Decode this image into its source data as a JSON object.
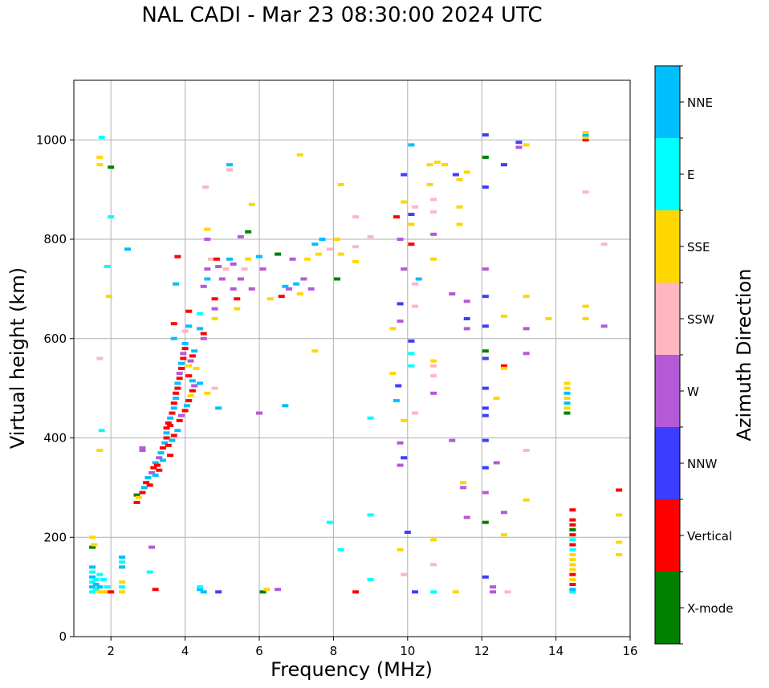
{
  "chart_data": {
    "type": "scatter",
    "title": "NAL CADI - Mar 23 08:30:00 2024 UTC",
    "xlabel": "Frequency (MHz)",
    "ylabel": "Virtual height (km)",
    "xlim": [
      1,
      16
    ],
    "ylim": [
      0,
      1120
    ],
    "xticks": [
      2,
      4,
      6,
      8,
      10,
      12,
      14,
      16
    ],
    "yticks": [
      0,
      200,
      400,
      600,
      800,
      1000
    ],
    "grid": true,
    "colorbar": {
      "label": "Azimuth Direction",
      "categories": [
        {
          "name": "X-mode",
          "color": "#008000"
        },
        {
          "name": "Vertical",
          "color": "#ff0000"
        },
        {
          "name": "NNW",
          "color": "#3d3dff"
        },
        {
          "name": "W",
          "color": "#b45ad6"
        },
        {
          "name": "SSW",
          "color": "#ffb6c1"
        },
        {
          "name": "SSE",
          "color": "#ffd700"
        },
        {
          "name": "E",
          "color": "#00ffff"
        },
        {
          "name": "NNE",
          "color": "#00bfff"
        }
      ]
    },
    "points": [
      [
        1.5,
        90,
        "E"
      ],
      [
        1.5,
        100,
        "NNE"
      ],
      [
        1.5,
        110,
        "E"
      ],
      [
        1.5,
        120,
        "NNE"
      ],
      [
        1.5,
        130,
        "E"
      ],
      [
        1.5,
        140,
        "NNE"
      ],
      [
        1.5,
        180,
        "X-mode"
      ],
      [
        1.55,
        185,
        "SSE"
      ],
      [
        1.6,
        95,
        "E"
      ],
      [
        1.6,
        105,
        "NNE"
      ],
      [
        1.6,
        115,
        "E"
      ],
      [
        1.7,
        90,
        "SSE"
      ],
      [
        1.7,
        100,
        "NNE"
      ],
      [
        1.7,
        125,
        "E"
      ],
      [
        1.8,
        90,
        "SSE"
      ],
      [
        1.8,
        115,
        "E"
      ],
      [
        1.9,
        90,
        "SSE"
      ],
      [
        1.9,
        100,
        "E"
      ],
      [
        2.0,
        90,
        "Vertical"
      ],
      [
        2.3,
        90,
        "SSE"
      ],
      [
        2.3,
        100,
        "E"
      ],
      [
        2.3,
        110,
        "SSE"
      ],
      [
        2.3,
        140,
        "NNE"
      ],
      [
        2.3,
        150,
        "E"
      ],
      [
        2.3,
        160,
        "NNE"
      ],
      [
        1.5,
        200,
        "SSE"
      ],
      [
        1.7,
        950,
        "SSE"
      ],
      [
        1.7,
        965,
        "SSE"
      ],
      [
        1.75,
        1005,
        "E"
      ],
      [
        2.0,
        945,
        "X-mode"
      ],
      [
        2.0,
        845,
        "E"
      ],
      [
        1.9,
        745,
        "E"
      ],
      [
        1.95,
        685,
        "SSE"
      ],
      [
        1.7,
        560,
        "SSW"
      ],
      [
        1.7,
        375,
        "SSE"
      ],
      [
        1.75,
        415,
        "E"
      ],
      [
        2.45,
        780,
        "NNE"
      ],
      [
        2.7,
        285,
        "X-mode"
      ],
      [
        2.75,
        280,
        "SSE"
      ],
      [
        2.7,
        270,
        "Vertical"
      ],
      [
        2.85,
        375,
        "W"
      ],
      [
        2.85,
        290,
        "Vertical"
      ],
      [
        2.9,
        300,
        "NNE"
      ],
      [
        2.95,
        310,
        "Vertical"
      ],
      [
        3.0,
        320,
        "NNE"
      ],
      [
        3.05,
        305,
        "Vertical"
      ],
      [
        3.1,
        330,
        "W"
      ],
      [
        3.15,
        340,
        "Vertical"
      ],
      [
        3.2,
        350,
        "NNE"
      ],
      [
        3.25,
        345,
        "Vertical"
      ],
      [
        3.3,
        360,
        "W"
      ],
      [
        3.35,
        370,
        "NNE"
      ],
      [
        3.4,
        380,
        "Vertical"
      ],
      [
        3.45,
        390,
        "NNE"
      ],
      [
        3.5,
        400,
        "Vertical"
      ],
      [
        3.5,
        410,
        "NNE"
      ],
      [
        3.5,
        420,
        "Vertical"
      ],
      [
        3.55,
        430,
        "Vertical"
      ],
      [
        3.6,
        440,
        "NNE"
      ],
      [
        3.6,
        425,
        "Vertical"
      ],
      [
        3.65,
        450,
        "Vertical"
      ],
      [
        3.7,
        460,
        "NNE"
      ],
      [
        3.7,
        470,
        "Vertical"
      ],
      [
        3.75,
        480,
        "NNE"
      ],
      [
        3.75,
        490,
        "Vertical"
      ],
      [
        3.8,
        500,
        "Vertical"
      ],
      [
        3.8,
        510,
        "NNE"
      ],
      [
        3.85,
        520,
        "Vertical"
      ],
      [
        3.85,
        530,
        "W"
      ],
      [
        3.9,
        540,
        "Vertical"
      ],
      [
        3.9,
        550,
        "NNE"
      ],
      [
        3.95,
        560,
        "Vertical"
      ],
      [
        3.95,
        570,
        "W"
      ],
      [
        4.0,
        580,
        "Vertical"
      ],
      [
        4.0,
        590,
        "NNE"
      ],
      [
        3.6,
        365,
        "Vertical"
      ],
      [
        3.4,
        355,
        "NNE"
      ],
      [
        3.3,
        335,
        "Vertical"
      ],
      [
        3.2,
        325,
        "NNE"
      ],
      [
        3.55,
        385,
        "Vertical"
      ],
      [
        3.65,
        395,
        "NNE"
      ],
      [
        3.7,
        405,
        "Vertical"
      ],
      [
        3.8,
        415,
        "NNE"
      ],
      [
        3.85,
        435,
        "Vertical"
      ],
      [
        3.9,
        445,
        "W"
      ],
      [
        4.0,
        455,
        "Vertical"
      ],
      [
        4.05,
        465,
        "NNE"
      ],
      [
        4.1,
        475,
        "Vertical"
      ],
      [
        4.15,
        485,
        "SSE"
      ],
      [
        4.2,
        495,
        "Vertical"
      ],
      [
        4.25,
        505,
        "W"
      ],
      [
        4.2,
        515,
        "NNE"
      ],
      [
        4.1,
        525,
        "Vertical"
      ],
      [
        4.1,
        545,
        "SSE"
      ],
      [
        4.15,
        555,
        "W"
      ],
      [
        4.2,
        565,
        "Vertical"
      ],
      [
        4.25,
        575,
        "NNE"
      ],
      [
        3.7,
        600,
        "NNE"
      ],
      [
        3.7,
        630,
        "Vertical"
      ],
      [
        3.75,
        710,
        "NNE"
      ],
      [
        3.8,
        765,
        "Vertical"
      ],
      [
        4.1,
        655,
        "Vertical"
      ],
      [
        4.1,
        625,
        "NNE"
      ],
      [
        4.0,
        615,
        "SSW"
      ],
      [
        4.4,
        620,
        "NNE"
      ],
      [
        4.5,
        610,
        "Vertical"
      ],
      [
        4.4,
        650,
        "E"
      ],
      [
        4.5,
        600,
        "W"
      ],
      [
        4.3,
        540,
        "SSE"
      ],
      [
        4.4,
        510,
        "NNE"
      ],
      [
        4.6,
        490,
        "SSE"
      ],
      [
        4.8,
        500,
        "SSW"
      ],
      [
        4.9,
        460,
        "NNE"
      ],
      [
        3.2,
        95,
        "Vertical"
      ],
      [
        3.1,
        180,
        "W"
      ],
      [
        2.85,
        380,
        "W"
      ],
      [
        3.05,
        130,
        "E"
      ],
      [
        4.4,
        95,
        "NNE"
      ],
      [
        4.4,
        100,
        "E"
      ],
      [
        4.5,
        90,
        "NNE"
      ],
      [
        4.9,
        90,
        "NNW"
      ],
      [
        4.5,
        705,
        "W"
      ],
      [
        4.6,
        720,
        "NNE"
      ],
      [
        4.6,
        740,
        "W"
      ],
      [
        4.7,
        760,
        "SSW"
      ],
      [
        4.8,
        680,
        "Vertical"
      ],
      [
        4.8,
        660,
        "W"
      ],
      [
        4.8,
        640,
        "SSE"
      ],
      [
        4.85,
        760,
        "Vertical"
      ],
      [
        4.9,
        745,
        "W"
      ],
      [
        4.6,
        820,
        "SSE"
      ],
      [
        4.6,
        800,
        "W"
      ],
      [
        4.55,
        905,
        "SSW"
      ],
      [
        5.0,
        720,
        "W"
      ],
      [
        5.1,
        740,
        "SSW"
      ],
      [
        5.2,
        760,
        "NNE"
      ],
      [
        5.3,
        750,
        "W"
      ],
      [
        5.3,
        700,
        "W"
      ],
      [
        5.4,
        680,
        "Vertical"
      ],
      [
        5.4,
        660,
        "SSE"
      ],
      [
        5.5,
        720,
        "W"
      ],
      [
        5.6,
        740,
        "SSW"
      ],
      [
        5.7,
        760,
        "SSE"
      ],
      [
        5.8,
        700,
        "W"
      ],
      [
        5.2,
        950,
        "NNE"
      ],
      [
        5.2,
        940,
        "SSW"
      ],
      [
        5.5,
        805,
        "W"
      ],
      [
        5.7,
        815,
        "X-mode"
      ],
      [
        5.8,
        870,
        "SSE"
      ],
      [
        6.0,
        765,
        "NNE"
      ],
      [
        6.0,
        450,
        "W"
      ],
      [
        6.1,
        740,
        "W"
      ],
      [
        6.1,
        90,
        "X-mode"
      ],
      [
        6.2,
        95,
        "SSE"
      ],
      [
        6.5,
        95,
        "W"
      ],
      [
        6.3,
        680,
        "SSE"
      ],
      [
        6.5,
        770,
        "X-mode"
      ],
      [
        6.6,
        685,
        "Vertical"
      ],
      [
        6.8,
        700,
        "W"
      ],
      [
        6.7,
        705,
        "NNE"
      ],
      [
        6.9,
        760,
        "W"
      ],
      [
        7.0,
        710,
        "NNE"
      ],
      [
        7.1,
        690,
        "SSE"
      ],
      [
        7.2,
        720,
        "W"
      ],
      [
        7.3,
        760,
        "SSE"
      ],
      [
        7.4,
        700,
        "W"
      ],
      [
        7.5,
        790,
        "NNE"
      ],
      [
        7.6,
        770,
        "SSE"
      ],
      [
        7.7,
        800,
        "NNE"
      ],
      [
        7.9,
        780,
        "SSW"
      ],
      [
        8.1,
        800,
        "SSE"
      ],
      [
        8.1,
        720,
        "X-mode"
      ],
      [
        8.2,
        770,
        "SSE"
      ],
      [
        8.2,
        910,
        "SSE"
      ],
      [
        6.7,
        465,
        "NNE"
      ],
      [
        7.1,
        970,
        "SSE"
      ],
      [
        7.5,
        575,
        "SSE"
      ],
      [
        7.9,
        230,
        "E"
      ],
      [
        8.2,
        175,
        "E"
      ],
      [
        8.6,
        90,
        "Vertical"
      ],
      [
        8.6,
        755,
        "SSE"
      ],
      [
        8.6,
        785,
        "SSW"
      ],
      [
        8.6,
        845,
        "SSW"
      ],
      [
        9.0,
        805,
        "SSW"
      ],
      [
        9.0,
        440,
        "E"
      ],
      [
        9.0,
        245,
        "E"
      ],
      [
        9.0,
        115,
        "E"
      ],
      [
        9.6,
        620,
        "SSE"
      ],
      [
        9.6,
        530,
        "SSE"
      ],
      [
        9.7,
        475,
        "NNE"
      ],
      [
        9.75,
        505,
        "NNW"
      ],
      [
        9.8,
        175,
        "SSE"
      ],
      [
        9.8,
        390,
        "W"
      ],
      [
        9.8,
        345,
        "W"
      ],
      [
        9.9,
        360,
        "NNW"
      ],
      [
        9.8,
        670,
        "NNW"
      ],
      [
        9.8,
        635,
        "W"
      ],
      [
        9.7,
        845,
        "Vertical"
      ],
      [
        9.8,
        800,
        "W"
      ],
      [
        9.9,
        930,
        "NNW"
      ],
      [
        9.9,
        875,
        "SSE"
      ],
      [
        9.9,
        740,
        "W"
      ],
      [
        9.9,
        435,
        "SSE"
      ],
      [
        9.9,
        125,
        "SSW"
      ],
      [
        10.0,
        210,
        "NNW"
      ],
      [
        10.1,
        990,
        "NNE"
      ],
      [
        10.1,
        850,
        "NNW"
      ],
      [
        10.1,
        830,
        "SSE"
      ],
      [
        10.1,
        790,
        "Vertical"
      ],
      [
        10.1,
        595,
        "NNW"
      ],
      [
        10.1,
        570,
        "E"
      ],
      [
        10.1,
        545,
        "E"
      ],
      [
        10.2,
        90,
        "NNW"
      ],
      [
        10.2,
        710,
        "SSW"
      ],
      [
        10.3,
        720,
        "NNE"
      ],
      [
        10.2,
        665,
        "SSW"
      ],
      [
        10.2,
        450,
        "SSW"
      ],
      [
        10.2,
        865,
        "SSW"
      ],
      [
        10.6,
        950,
        "SSE"
      ],
      [
        10.6,
        910,
        "SSE"
      ],
      [
        10.7,
        880,
        "SSW"
      ],
      [
        10.7,
        855,
        "SSW"
      ],
      [
        10.7,
        810,
        "W"
      ],
      [
        10.7,
        760,
        "SSE"
      ],
      [
        10.7,
        555,
        "SSE"
      ],
      [
        10.7,
        545,
        "SSW"
      ],
      [
        10.7,
        525,
        "SSW"
      ],
      [
        10.7,
        490,
        "W"
      ],
      [
        10.7,
        195,
        "SSE"
      ],
      [
        10.7,
        145,
        "SSW"
      ],
      [
        10.7,
        90,
        "E"
      ],
      [
        10.8,
        955,
        "SSE"
      ],
      [
        11.0,
        950,
        "SSE"
      ],
      [
        11.2,
        690,
        "W"
      ],
      [
        11.2,
        395,
        "W"
      ],
      [
        11.3,
        90,
        "SSE"
      ],
      [
        11.3,
        930,
        "NNW"
      ],
      [
        11.4,
        920,
        "SSE"
      ],
      [
        11.4,
        865,
        "SSE"
      ],
      [
        11.4,
        830,
        "SSE"
      ],
      [
        11.5,
        310,
        "SSE"
      ],
      [
        11.5,
        300,
        "W"
      ],
      [
        11.6,
        935,
        "SSE"
      ],
      [
        11.6,
        675,
        "W"
      ],
      [
        11.6,
        640,
        "NNW"
      ],
      [
        11.6,
        620,
        "W"
      ],
      [
        11.6,
        240,
        "W"
      ],
      [
        12.1,
        1010,
        "NNW"
      ],
      [
        12.1,
        965,
        "X-mode"
      ],
      [
        12.1,
        905,
        "NNW"
      ],
      [
        12.1,
        740,
        "W"
      ],
      [
        12.1,
        685,
        "NNW"
      ],
      [
        12.1,
        625,
        "NNW"
      ],
      [
        12.1,
        575,
        "X-mode"
      ],
      [
        12.1,
        560,
        "NNW"
      ],
      [
        12.1,
        500,
        "NNW"
      ],
      [
        12.1,
        460,
        "NNW"
      ],
      [
        12.1,
        445,
        "NNW"
      ],
      [
        12.1,
        395,
        "NNW"
      ],
      [
        12.1,
        340,
        "NNW"
      ],
      [
        12.1,
        290,
        "W"
      ],
      [
        12.1,
        230,
        "X-mode"
      ],
      [
        12.1,
        120,
        "NNW"
      ],
      [
        12.3,
        100,
        "W"
      ],
      [
        12.3,
        90,
        "W"
      ],
      [
        12.4,
        480,
        "SSE"
      ],
      [
        12.4,
        350,
        "W"
      ],
      [
        12.6,
        950,
        "NNW"
      ],
      [
        12.6,
        645,
        "SSE"
      ],
      [
        12.6,
        545,
        "Vertical"
      ],
      [
        12.6,
        540,
        "SSE"
      ],
      [
        12.6,
        250,
        "W"
      ],
      [
        12.6,
        205,
        "SSE"
      ],
      [
        12.7,
        90,
        "SSW"
      ],
      [
        13.0,
        995,
        "NNW"
      ],
      [
        13.0,
        985,
        "W"
      ],
      [
        13.2,
        685,
        "SSE"
      ],
      [
        13.2,
        620,
        "W"
      ],
      [
        13.2,
        570,
        "W"
      ],
      [
        13.2,
        375,
        "SSW"
      ],
      [
        13.2,
        275,
        "SSE"
      ],
      [
        13.8,
        640,
        "SSE"
      ],
      [
        13.2,
        990,
        "SSE"
      ],
      [
        14.45,
        90,
        "E"
      ],
      [
        14.45,
        95,
        "NNE"
      ],
      [
        14.45,
        105,
        "Vertical"
      ],
      [
        14.45,
        115,
        "SSE"
      ],
      [
        14.45,
        125,
        "Vertical"
      ],
      [
        14.45,
        135,
        "SSE"
      ],
      [
        14.45,
        145,
        "SSE"
      ],
      [
        14.45,
        155,
        "SSE"
      ],
      [
        14.45,
        165,
        "SSE"
      ],
      [
        14.45,
        175,
        "E"
      ],
      [
        14.45,
        185,
        "Vertical"
      ],
      [
        14.45,
        195,
        "E"
      ],
      [
        14.45,
        205,
        "Vertical"
      ],
      [
        14.45,
        215,
        "X-mode"
      ],
      [
        14.45,
        225,
        "Vertical"
      ],
      [
        14.45,
        235,
        "Vertical"
      ],
      [
        14.45,
        255,
        "Vertical"
      ],
      [
        14.3,
        450,
        "X-mode"
      ],
      [
        14.3,
        460,
        "SSE"
      ],
      [
        14.3,
        470,
        "NNE"
      ],
      [
        14.3,
        480,
        "SSE"
      ],
      [
        14.3,
        490,
        "NNE"
      ],
      [
        14.3,
        500,
        "SSE"
      ],
      [
        14.3,
        510,
        "SSE"
      ],
      [
        14.8,
        1000,
        "Vertical"
      ],
      [
        14.8,
        1005,
        "SSE"
      ],
      [
        14.8,
        1010,
        "NNE"
      ],
      [
        14.8,
        1015,
        "SSE"
      ],
      [
        14.8,
        895,
        "SSW"
      ],
      [
        14.8,
        665,
        "SSE"
      ],
      [
        14.8,
        640,
        "SSE"
      ],
      [
        15.3,
        625,
        "W"
      ],
      [
        15.3,
        790,
        "SSW"
      ],
      [
        15.7,
        295,
        "Vertical"
      ],
      [
        15.7,
        245,
        "SSE"
      ],
      [
        15.7,
        190,
        "SSE"
      ],
      [
        15.7,
        165,
        "SSE"
      ]
    ]
  }
}
